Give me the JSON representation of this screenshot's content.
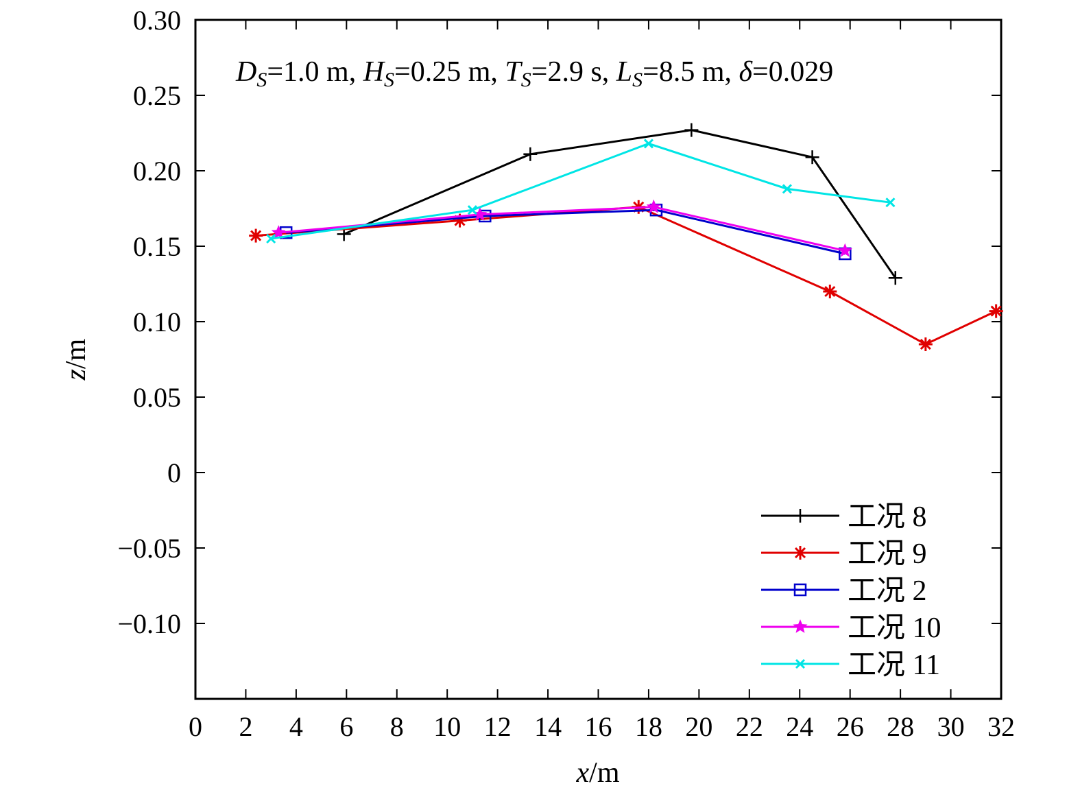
{
  "chart_data": {
    "type": "line",
    "title": "",
    "annotation": [
      {
        "text": "D",
        "italic": true
      },
      {
        "text": "S",
        "italic": true,
        "sub": true
      },
      {
        "text": "=1.0 m, "
      },
      {
        "text": "H",
        "italic": true
      },
      {
        "text": "S",
        "italic": true,
        "sub": true
      },
      {
        "text": "=0.25 m, "
      },
      {
        "text": "T",
        "italic": true
      },
      {
        "text": "S",
        "italic": true,
        "sub": true
      },
      {
        "text": "=2.9 s, "
      },
      {
        "text": "L",
        "italic": true
      },
      {
        "text": "S",
        "italic": true,
        "sub": true
      },
      {
        "text": "=8.5 m, "
      },
      {
        "text": "δ",
        "italic": true
      },
      {
        "text": "=0.029"
      }
    ],
    "xlabel": {
      "var": "x",
      "unit": "/m"
    },
    "ylabel": {
      "var": "z",
      "unit": "/m"
    },
    "xlim": [
      0,
      32
    ],
    "ylim": [
      -0.15,
      0.3
    ],
    "xticks": [
      0,
      2,
      4,
      6,
      8,
      10,
      12,
      14,
      16,
      18,
      20,
      22,
      24,
      26,
      28,
      30,
      32
    ],
    "xtick_labels": [
      "0",
      "2",
      "4",
      "6",
      "8",
      "10",
      "12",
      "14",
      "16",
      "18",
      "20",
      "22",
      "24",
      "26",
      "28",
      "30",
      "32"
    ],
    "yticks": [
      -0.1,
      -0.05,
      0,
      0.05,
      0.1,
      0.15,
      0.2,
      0.25,
      0.3
    ],
    "ytick_labels": [
      "−0.10",
      "−0.05",
      "0",
      "0.05",
      "0.10",
      "0.15",
      "0.20",
      "0.25",
      "0.30"
    ],
    "grid": false,
    "legend_position": "bottom-right",
    "series": [
      {
        "name": "工况 8",
        "color": "#000000",
        "marker": "plus",
        "x": [
          5.9,
          13.3,
          19.7,
          24.5,
          27.8
        ],
        "y": [
          0.158,
          0.211,
          0.227,
          0.209,
          0.129
        ]
      },
      {
        "name": "工况 9",
        "color": "#e00000",
        "marker": "asterisk",
        "x": [
          2.4,
          10.5,
          17.6,
          25.2,
          29.0,
          31.8
        ],
        "y": [
          0.157,
          0.167,
          0.176,
          0.12,
          0.085,
          0.107
        ]
      },
      {
        "name": "工况 2",
        "color": "#0000cc",
        "marker": "square",
        "x": [
          3.6,
          11.5,
          18.3,
          25.8
        ],
        "y": [
          0.159,
          0.17,
          0.174,
          0.145
        ]
      },
      {
        "name": "工况 10",
        "color": "#ee00ee",
        "marker": "star",
        "x": [
          3.3,
          11.3,
          18.2,
          25.8
        ],
        "y": [
          0.159,
          0.171,
          0.176,
          0.147
        ]
      },
      {
        "name": "工况 11",
        "color": "#00e5e5",
        "marker": "cross",
        "x": [
          3.0,
          11.0,
          18.0,
          23.5,
          27.6
        ],
        "y": [
          0.155,
          0.174,
          0.218,
          0.188,
          0.179
        ]
      }
    ]
  }
}
